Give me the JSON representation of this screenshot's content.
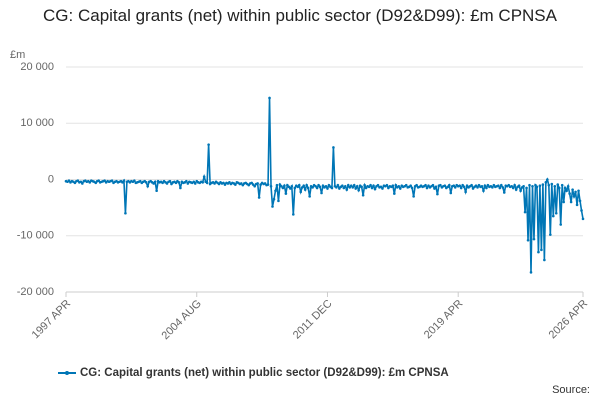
{
  "chart_data": {
    "type": "line",
    "title": "CG: Capital grants (net) within public sector (D92&D99): £m CPNSA",
    "y_label": "£m",
    "source": "Source:",
    "ylim": [
      -20000,
      20000
    ],
    "yticks": [
      {
        "value": -20000,
        "label": "-20 000"
      },
      {
        "value": -10000,
        "label": "-10 000"
      },
      0,
      {
        "value": 10000,
        "label": "10 000"
      },
      {
        "value": 20000,
        "label": "20 000"
      }
    ],
    "grid": true,
    "categories": [
      "1997 APR",
      null,
      null,
      null,
      null,
      null,
      null,
      null,
      null,
      null,
      null,
      null,
      null,
      null,
      null,
      null,
      null,
      null,
      null,
      null,
      null,
      null,
      null,
      null,
      null,
      null,
      null,
      null,
      null,
      null,
      null,
      null,
      null,
      null,
      null,
      null,
      null,
      null,
      null,
      null,
      null,
      null,
      null,
      null,
      null,
      null,
      null,
      null,
      null,
      null,
      null,
      null,
      null,
      null,
      null,
      null,
      null,
      null,
      null,
      null,
      null,
      null,
      null,
      null,
      null,
      null,
      null,
      null,
      null,
      null,
      null,
      null,
      null,
      null,
      null,
      null,
      null,
      null,
      null,
      null,
      null,
      null,
      null,
      null,
      null,
      null,
      null,
      null,
      "2004 AUG",
      null,
      null,
      null,
      null,
      null,
      null,
      null,
      null,
      null,
      null,
      null,
      null,
      null,
      null,
      null,
      null,
      null,
      null,
      null,
      null,
      null,
      null,
      null,
      null,
      null,
      null,
      null,
      null,
      null,
      null,
      null,
      null,
      null,
      null,
      null,
      null,
      null,
      null,
      null,
      null,
      null,
      null,
      null,
      null,
      null,
      null,
      null,
      null,
      null,
      null,
      null,
      null,
      null,
      null,
      null,
      null,
      null,
      null,
      null,
      null,
      null,
      null,
      null,
      null,
      null,
      null,
      null,
      null,
      null,
      null,
      null,
      null,
      null,
      null,
      null,
      null,
      null,
      null,
      null,
      null,
      null,
      null,
      null,
      null,
      null,
      null,
      null,
      "2011 DEC",
      null,
      null,
      null,
      null,
      null,
      null,
      null,
      null,
      null,
      null,
      null,
      null,
      null,
      null,
      null,
      null,
      null,
      null,
      null,
      null,
      null,
      null,
      null,
      null,
      null,
      null,
      null,
      null,
      null,
      null,
      null,
      null,
      null,
      null,
      null,
      null,
      null,
      null,
      null,
      null,
      null,
      null,
      null,
      null,
      null,
      null,
      null,
      null,
      null,
      null,
      null,
      null,
      null,
      null,
      null,
      null,
      null,
      null,
      null,
      null,
      null,
      null,
      null,
      null,
      null,
      null,
      null,
      null,
      null,
      null,
      null,
      null,
      null,
      null,
      null,
      null,
      null,
      null,
      null,
      null,
      null,
      null,
      null,
      null,
      null,
      null,
      null,
      "2019 APR",
      null,
      null,
      null,
      null,
      null,
      null,
      null,
      null,
      null,
      null,
      null,
      null,
      null,
      null,
      null,
      null,
      null,
      null,
      null,
      null,
      null,
      null,
      null,
      null,
      null,
      null,
      null,
      null,
      null,
      null,
      null,
      null,
      null,
      null,
      null,
      null,
      null,
      null,
      null,
      null,
      null,
      null,
      null,
      null,
      null,
      null,
      null,
      null,
      null,
      null,
      null,
      null,
      null,
      null,
      null,
      null,
      null,
      null,
      null,
      null,
      null,
      null,
      null,
      null,
      null,
      null,
      null,
      null,
      null,
      null,
      null,
      null,
      null,
      null,
      null,
      null,
      null,
      null,
      null,
      null,
      null,
      null,
      null,
      "2026 APR"
    ],
    "series": [
      {
        "name": "CG: Capital grants (net) within public sector (D92&D99): £m CPNSA",
        "color": "#0076b6",
        "values": [
          -300,
          -400,
          -200,
          -500,
          -300,
          -400,
          -600,
          -300,
          -200,
          -500,
          -400,
          -700,
          -300,
          -200,
          -400,
          -300,
          -500,
          -200,
          -300,
          -400,
          -600,
          -300,
          -200,
          -500,
          -400,
          -300,
          -200,
          -500,
          -300,
          -400,
          -300,
          -200,
          -600,
          -400,
          -300,
          -500,
          -400,
          -300,
          -500,
          -200,
          -6000,
          -400,
          -300,
          -500,
          -300,
          -400,
          -200,
          -600,
          -500,
          -400,
          -300,
          -600,
          -400,
          -300,
          -500,
          -1200,
          -400,
          -300,
          -500,
          -700,
          -400,
          -2000,
          -300,
          -500,
          -400,
          -600,
          -300,
          -500,
          -700,
          -400,
          -300,
          -800,
          -500,
          -400,
          -600,
          -300,
          -500,
          -1500,
          -400,
          -600,
          -500,
          -300,
          -700,
          -400,
          -500,
          -600,
          -400,
          -700,
          -300,
          -500,
          -600,
          -400,
          -500,
          500,
          -400,
          -600,
          6200,
          -800,
          -600,
          -500,
          -700,
          -400,
          -600,
          -800,
          -500,
          -700,
          -600,
          -900,
          -600,
          -700,
          -500,
          -800,
          -600,
          -700,
          -900,
          -500,
          -600,
          -800,
          -700,
          -1000,
          -700,
          -600,
          -800,
          -1000,
          -700,
          -600,
          -900,
          -1200,
          -800,
          -700,
          -3200,
          -900,
          -600,
          -800,
          -700,
          -1000,
          -900,
          14500,
          -1200,
          -4800,
          -3500,
          -2000,
          -1000,
          -3800,
          -900,
          -1200,
          -1500,
          -1100,
          -2500,
          -1000,
          -1300,
          -1600,
          -1200,
          -6200,
          -1500,
          -1100,
          -1300,
          -1000,
          -2200,
          -1400,
          -1100,
          -1800,
          -1000,
          -1500,
          -3000,
          -1200,
          -1400,
          -1000,
          -1200,
          -1500,
          -1000,
          -1300,
          -2400,
          -1100,
          -1400,
          -1200,
          -1600,
          -1000,
          -1300,
          -1500,
          5700,
          -1200,
          -1400,
          -1000,
          -1600,
          -1300,
          -1100,
          -1500,
          -1200,
          -1800,
          -1000,
          -1400,
          -1100,
          -1400,
          -1000,
          -1600,
          -1200,
          -1900,
          -1100,
          -1300,
          -2800,
          -1000,
          -1500,
          -1200,
          -1300,
          -1000,
          -1500,
          -1100,
          -1700,
          -1200,
          -1000,
          -1400,
          -1300,
          -1600,
          -1100,
          -1200,
          -1000,
          -1500,
          -1200,
          -1300,
          -1100,
          -2500,
          -1000,
          -1400,
          -1200,
          -1600,
          -1100,
          -1300,
          -1200,
          -1000,
          -1400,
          -1300,
          -1100,
          -1500,
          -3000,
          -1200,
          -1000,
          -1400,
          -1300,
          -1100,
          -1300,
          -1200,
          -1000,
          -1500,
          -1100,
          -1400,
          -1200,
          -1000,
          -1600,
          -1300,
          -2600,
          -1100,
          -1000,
          -1400,
          -1200,
          -1100,
          -1500,
          -1300,
          -1000,
          -2400,
          -1200,
          -1100,
          -1400,
          -1000,
          -1200,
          -1100,
          -1500,
          -1000,
          -1300,
          -2200,
          -1100,
          -1400,
          -1200,
          -1000,
          -1600,
          -1300,
          -1100,
          -1400,
          -1000,
          -1300,
          -1200,
          -2000,
          -1100,
          -1500,
          -1000,
          -1300,
          -1200,
          -1400,
          -1000,
          -1300,
          -1200,
          -1100,
          -1500,
          -1000,
          -1400,
          -2300,
          -1100,
          -1200,
          -1000,
          -1300,
          -1200,
          -1500,
          -1000,
          -1800,
          -1300,
          -1100,
          -2000,
          -1400,
          -1200,
          -5800,
          -1500,
          -10800,
          -1000,
          -16500,
          -1200,
          -10600,
          -1000,
          -1300,
          -12900,
          -1100,
          -12500,
          -900,
          -14300,
          -500,
          0,
          -1000,
          -9800,
          -800,
          -6500,
          -1200,
          -6000,
          -900,
          -1500,
          -8000,
          -1000,
          -4000,
          -1500,
          -2000,
          -1200,
          -2500,
          -4000,
          -1800,
          -3000,
          -2200,
          -4500,
          -2000,
          -3800,
          -5500,
          -7000
        ]
      }
    ]
  }
}
